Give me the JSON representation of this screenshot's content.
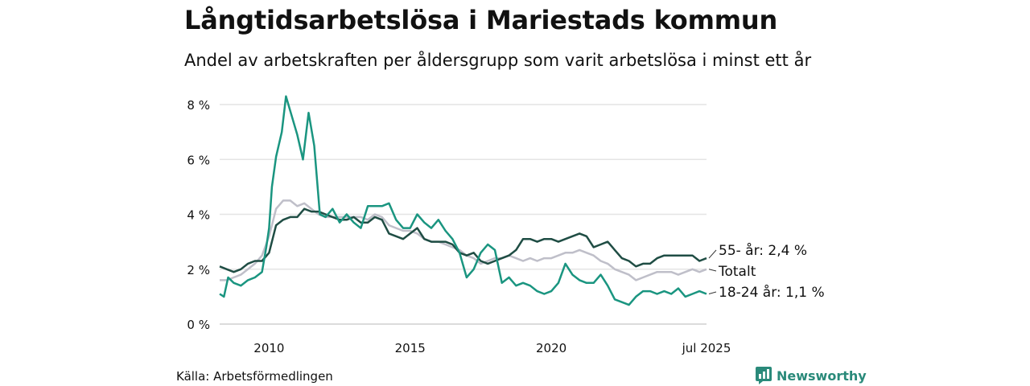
{
  "title": "Långtidsarbetslösa i Mariestads kommun",
  "subtitle": "Andel av arbetskraften per åldersgrupp som varit arbetslösa i minst ett år",
  "source": "Källa: Arbetsförmedlingen",
  "brand": "Newsworthy",
  "chart_data": {
    "type": "line",
    "x_unit": "year",
    "xlim": [
      2008.25,
      2025.5
    ],
    "ylim": [
      0,
      8.5
    ],
    "y_ticks": [
      0,
      2,
      4,
      6,
      8
    ],
    "y_tick_labels": [
      "0 %",
      "2 %",
      "4 %",
      "6 %",
      "8 %"
    ],
    "x_ticks": [
      2010,
      2015,
      2020,
      2025.5
    ],
    "x_tick_labels": [
      "2010",
      "2015",
      "2020",
      "jul 2025"
    ],
    "grid": true,
    "series": [
      {
        "name": "55- år",
        "label": "55- år: 2,4 %",
        "color": "#1f4d44",
        "points": [
          [
            2008.25,
            2.1
          ],
          [
            2008.5,
            2.0
          ],
          [
            2008.75,
            1.9
          ],
          [
            2009.0,
            2.0
          ],
          [
            2009.25,
            2.2
          ],
          [
            2009.5,
            2.3
          ],
          [
            2009.75,
            2.3
          ],
          [
            2010.0,
            2.6
          ],
          [
            2010.25,
            3.6
          ],
          [
            2010.5,
            3.8
          ],
          [
            2010.75,
            3.9
          ],
          [
            2011.0,
            3.9
          ],
          [
            2011.25,
            4.2
          ],
          [
            2011.5,
            4.1
          ],
          [
            2011.75,
            4.1
          ],
          [
            2012.0,
            4.0
          ],
          [
            2012.25,
            3.9
          ],
          [
            2012.5,
            3.8
          ],
          [
            2012.75,
            3.8
          ],
          [
            2013.0,
            3.9
          ],
          [
            2013.25,
            3.7
          ],
          [
            2013.5,
            3.7
          ],
          [
            2013.75,
            3.9
          ],
          [
            2014.0,
            3.8
          ],
          [
            2014.25,
            3.3
          ],
          [
            2014.5,
            3.2
          ],
          [
            2014.75,
            3.1
          ],
          [
            2015.0,
            3.3
          ],
          [
            2015.25,
            3.5
          ],
          [
            2015.5,
            3.1
          ],
          [
            2015.75,
            3.0
          ],
          [
            2016.0,
            3.0
          ],
          [
            2016.25,
            3.0
          ],
          [
            2016.5,
            2.9
          ],
          [
            2016.75,
            2.6
          ],
          [
            2017.0,
            2.5
          ],
          [
            2017.25,
            2.6
          ],
          [
            2017.5,
            2.3
          ],
          [
            2017.75,
            2.2
          ],
          [
            2018.0,
            2.3
          ],
          [
            2018.25,
            2.4
          ],
          [
            2018.5,
            2.5
          ],
          [
            2018.75,
            2.7
          ],
          [
            2019.0,
            3.1
          ],
          [
            2019.25,
            3.1
          ],
          [
            2019.5,
            3.0
          ],
          [
            2019.75,
            3.1
          ],
          [
            2020.0,
            3.1
          ],
          [
            2020.25,
            3.0
          ],
          [
            2020.5,
            3.1
          ],
          [
            2020.75,
            3.2
          ],
          [
            2021.0,
            3.3
          ],
          [
            2021.25,
            3.2
          ],
          [
            2021.5,
            2.8
          ],
          [
            2021.75,
            2.9
          ],
          [
            2022.0,
            3.0
          ],
          [
            2022.25,
            2.7
          ],
          [
            2022.5,
            2.4
          ],
          [
            2022.75,
            2.3
          ],
          [
            2023.0,
            2.1
          ],
          [
            2023.25,
            2.2
          ],
          [
            2023.5,
            2.2
          ],
          [
            2023.75,
            2.4
          ],
          [
            2024.0,
            2.5
          ],
          [
            2024.25,
            2.5
          ],
          [
            2024.5,
            2.5
          ],
          [
            2024.75,
            2.5
          ],
          [
            2025.0,
            2.5
          ],
          [
            2025.25,
            2.3
          ],
          [
            2025.5,
            2.4
          ]
        ]
      },
      {
        "name": "Totalt",
        "label": "Totalt",
        "color": "#bfbfc9",
        "points": [
          [
            2008.25,
            1.6
          ],
          [
            2008.5,
            1.6
          ],
          [
            2008.75,
            1.7
          ],
          [
            2009.0,
            1.8
          ],
          [
            2009.25,
            2.0
          ],
          [
            2009.5,
            2.2
          ],
          [
            2009.75,
            2.5
          ],
          [
            2010.0,
            3.2
          ],
          [
            2010.25,
            4.2
          ],
          [
            2010.5,
            4.5
          ],
          [
            2010.75,
            4.5
          ],
          [
            2011.0,
            4.3
          ],
          [
            2011.25,
            4.4
          ],
          [
            2011.5,
            4.2
          ],
          [
            2011.75,
            4.0
          ],
          [
            2012.0,
            3.9
          ],
          [
            2012.25,
            3.9
          ],
          [
            2012.5,
            3.9
          ],
          [
            2012.75,
            3.9
          ],
          [
            2013.0,
            3.9
          ],
          [
            2013.25,
            3.9
          ],
          [
            2013.5,
            3.8
          ],
          [
            2013.75,
            4.0
          ],
          [
            2014.0,
            3.9
          ],
          [
            2014.25,
            3.6
          ],
          [
            2014.5,
            3.5
          ],
          [
            2014.75,
            3.4
          ],
          [
            2015.0,
            3.4
          ],
          [
            2015.25,
            3.3
          ],
          [
            2015.5,
            3.1
          ],
          [
            2015.75,
            3.0
          ],
          [
            2016.0,
            3.0
          ],
          [
            2016.25,
            2.9
          ],
          [
            2016.5,
            2.8
          ],
          [
            2016.75,
            2.7
          ],
          [
            2017.0,
            2.5
          ],
          [
            2017.25,
            2.4
          ],
          [
            2017.5,
            2.2
          ],
          [
            2017.75,
            2.3
          ],
          [
            2018.0,
            2.4
          ],
          [
            2018.25,
            2.4
          ],
          [
            2018.5,
            2.5
          ],
          [
            2018.75,
            2.4
          ],
          [
            2019.0,
            2.3
          ],
          [
            2019.25,
            2.4
          ],
          [
            2019.5,
            2.3
          ],
          [
            2019.75,
            2.4
          ],
          [
            2020.0,
            2.4
          ],
          [
            2020.25,
            2.5
          ],
          [
            2020.5,
            2.6
          ],
          [
            2020.75,
            2.6
          ],
          [
            2021.0,
            2.7
          ],
          [
            2021.25,
            2.6
          ],
          [
            2021.5,
            2.5
          ],
          [
            2021.75,
            2.3
          ],
          [
            2022.0,
            2.2
          ],
          [
            2022.25,
            2.0
          ],
          [
            2022.5,
            1.9
          ],
          [
            2022.75,
            1.8
          ],
          [
            2023.0,
            1.6
          ],
          [
            2023.25,
            1.7
          ],
          [
            2023.5,
            1.8
          ],
          [
            2023.75,
            1.9
          ],
          [
            2024.0,
            1.9
          ],
          [
            2024.25,
            1.9
          ],
          [
            2024.5,
            1.8
          ],
          [
            2024.75,
            1.9
          ],
          [
            2025.0,
            2.0
          ],
          [
            2025.25,
            1.9
          ],
          [
            2025.5,
            2.0
          ]
        ]
      },
      {
        "name": "18-24 år",
        "label": "18-24 år: 1,1 %",
        "color": "#1a9580",
        "points": [
          [
            2008.25,
            1.1
          ],
          [
            2008.4,
            1.0
          ],
          [
            2008.55,
            1.7
          ],
          [
            2008.75,
            1.5
          ],
          [
            2009.0,
            1.4
          ],
          [
            2009.25,
            1.6
          ],
          [
            2009.5,
            1.7
          ],
          [
            2009.75,
            1.9
          ],
          [
            2009.9,
            2.8
          ],
          [
            2010.0,
            3.5
          ],
          [
            2010.1,
            5.0
          ],
          [
            2010.25,
            6.1
          ],
          [
            2010.45,
            7.0
          ],
          [
            2010.6,
            8.3
          ],
          [
            2010.8,
            7.6
          ],
          [
            2011.0,
            6.9
          ],
          [
            2011.2,
            6.0
          ],
          [
            2011.4,
            7.7
          ],
          [
            2011.6,
            6.5
          ],
          [
            2011.8,
            4.0
          ],
          [
            2012.0,
            3.9
          ],
          [
            2012.25,
            4.2
          ],
          [
            2012.5,
            3.7
          ],
          [
            2012.75,
            4.0
          ],
          [
            2013.0,
            3.7
          ],
          [
            2013.25,
            3.5
          ],
          [
            2013.5,
            4.3
          ],
          [
            2013.75,
            4.3
          ],
          [
            2014.0,
            4.3
          ],
          [
            2014.25,
            4.4
          ],
          [
            2014.5,
            3.8
          ],
          [
            2014.75,
            3.5
          ],
          [
            2015.0,
            3.5
          ],
          [
            2015.25,
            4.0
          ],
          [
            2015.5,
            3.7
          ],
          [
            2015.75,
            3.5
          ],
          [
            2016.0,
            3.8
          ],
          [
            2016.25,
            3.4
          ],
          [
            2016.5,
            3.1
          ],
          [
            2016.75,
            2.6
          ],
          [
            2017.0,
            1.7
          ],
          [
            2017.25,
            2.0
          ],
          [
            2017.5,
            2.6
          ],
          [
            2017.75,
            2.9
          ],
          [
            2018.0,
            2.7
          ],
          [
            2018.25,
            1.5
          ],
          [
            2018.5,
            1.7
          ],
          [
            2018.75,
            1.4
          ],
          [
            2019.0,
            1.5
          ],
          [
            2019.25,
            1.4
          ],
          [
            2019.5,
            1.2
          ],
          [
            2019.75,
            1.1
          ],
          [
            2020.0,
            1.2
          ],
          [
            2020.25,
            1.5
          ],
          [
            2020.5,
            2.2
          ],
          [
            2020.75,
            1.8
          ],
          [
            2021.0,
            1.6
          ],
          [
            2021.25,
            1.5
          ],
          [
            2021.5,
            1.5
          ],
          [
            2021.75,
            1.8
          ],
          [
            2022.0,
            1.4
          ],
          [
            2022.25,
            0.9
          ],
          [
            2022.5,
            0.8
          ],
          [
            2022.75,
            0.7
          ],
          [
            2023.0,
            1.0
          ],
          [
            2023.25,
            1.2
          ],
          [
            2023.5,
            1.2
          ],
          [
            2023.75,
            1.1
          ],
          [
            2024.0,
            1.2
          ],
          [
            2024.25,
            1.1
          ],
          [
            2024.5,
            1.3
          ],
          [
            2024.75,
            1.0
          ],
          [
            2025.0,
            1.1
          ],
          [
            2025.25,
            1.2
          ],
          [
            2025.5,
            1.1
          ]
        ]
      }
    ]
  }
}
